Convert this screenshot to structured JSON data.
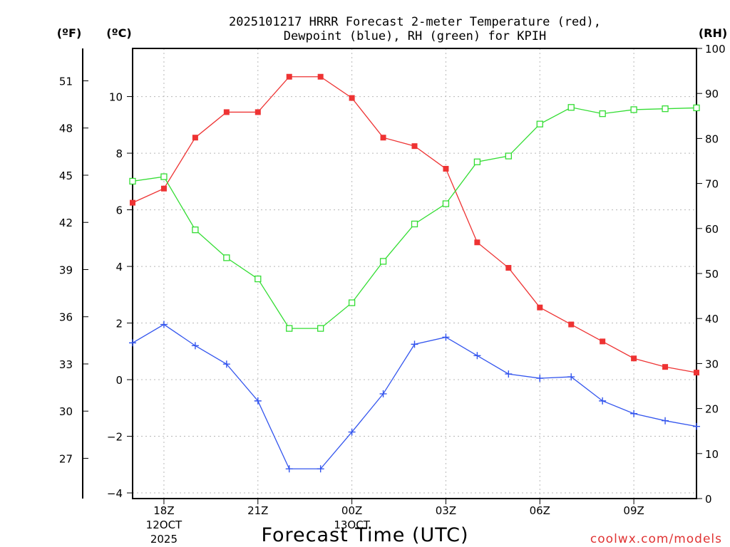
{
  "chart_data": {
    "type": "line",
    "title_line1": "2025101217 HRRR Forecast 2-meter Temperature (red),",
    "title_line2": "Dewpoint (blue), RH (green) for KPIH",
    "xlabel": "Forecast Time (UTC)",
    "watermark": "coolwx.com/models",
    "unit_f": "(ºF)",
    "unit_c": "(ºC)",
    "unit_rh": "(RH)",
    "x_hours": [
      17,
      18,
      19,
      20,
      21,
      22,
      23,
      24,
      25,
      26,
      27,
      28,
      29,
      30,
      31,
      32,
      33,
      34,
      35
    ],
    "xlim": [
      17,
      35
    ],
    "x_ticks": [
      {
        "hour": 18,
        "lines": [
          "18Z",
          "12OCT",
          "2025"
        ]
      },
      {
        "hour": 21,
        "lines": [
          "21Z"
        ]
      },
      {
        "hour": 24,
        "lines": [
          "00Z",
          "13OCT"
        ]
      },
      {
        "hour": 27,
        "lines": [
          "03Z"
        ]
      },
      {
        "hour": 30,
        "lines": [
          "06Z"
        ]
      },
      {
        "hour": 33,
        "lines": [
          "09Z"
        ]
      }
    ],
    "ylim_c": [
      -4.2,
      11.7
    ],
    "y_ticks_c": [
      -4,
      -2,
      0,
      2,
      4,
      6,
      8,
      10
    ],
    "y_tick_labels_c": [
      "−4",
      "−2",
      "0",
      "2",
      "4",
      "6",
      "8",
      "10"
    ],
    "y_ticks_f": [
      27,
      30,
      33,
      36,
      39,
      42,
      45,
      48,
      51
    ],
    "y_tick_labels_f": [
      "27",
      "30",
      "33",
      "36",
      "39",
      "42",
      "45",
      "48",
      "51"
    ],
    "ylim_rh": [
      0,
      100
    ],
    "y_ticks_rh": [
      0,
      10,
      20,
      30,
      40,
      50,
      60,
      70,
      80,
      90,
      100
    ],
    "y_tick_labels_rh": [
      "0",
      "10",
      "20",
      "30",
      "40",
      "50",
      "60",
      "70",
      "80",
      "90",
      "100"
    ],
    "series": [
      {
        "name": "2-meter Temperature",
        "axis": "c",
        "color": "#ee3333",
        "marker": "filled-square",
        "values": [
          6.25,
          6.75,
          8.55,
          9.45,
          9.45,
          10.7,
          10.7,
          9.95,
          8.55,
          8.25,
          7.45,
          4.85,
          3.95,
          2.55,
          1.95,
          1.35,
          0.75,
          0.45,
          0.25
        ]
      },
      {
        "name": "Dewpoint",
        "axis": "c",
        "color": "#3355ee",
        "marker": "plus",
        "values": [
          1.3,
          1.95,
          1.2,
          0.55,
          -0.75,
          -3.15,
          -3.15,
          -1.85,
          -0.5,
          1.25,
          1.5,
          0.85,
          0.2,
          0.05,
          0.1,
          -0.75,
          -1.2,
          -1.45,
          -1.65
        ]
      },
      {
        "name": "RH",
        "axis": "rh",
        "color": "#33dd33",
        "marker": "open-square",
        "values": [
          70.5,
          71.5,
          59.7,
          53.5,
          48.8,
          37.8,
          37.8,
          43.5,
          52.7,
          61.0,
          65.5,
          74.8,
          76.1,
          83.2,
          86.9,
          85.5,
          86.4,
          86.6,
          86.8
        ]
      }
    ]
  }
}
